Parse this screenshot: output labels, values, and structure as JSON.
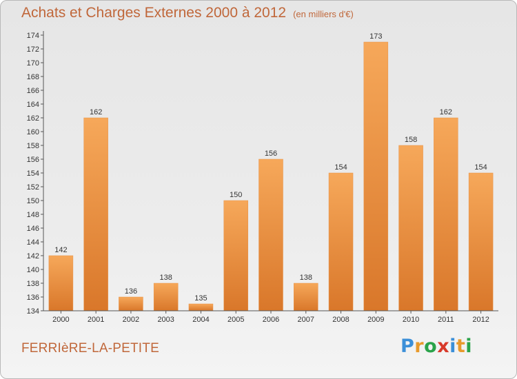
{
  "header": {
    "title": "Achats et Charges Externes 2000 à 2012",
    "subtitle": "(en milliers d'€)"
  },
  "footer": {
    "commune": "FERRIèRE-LA-PETITE",
    "logo_letters": [
      "P",
      "r",
      "o",
      "x",
      "i",
      "t",
      "i"
    ],
    "logo_colors": [
      "#3b8fd8",
      "#e89a2c",
      "#2aa34a",
      "#d83a2a",
      "#3b8fd8",
      "#e89a2c",
      "#2aa34a"
    ]
  },
  "colors": {
    "bar": "#e88a36",
    "bar_light": "#f6a85a",
    "title": "#c0673a",
    "axis": "#555555"
  },
  "chart_data": {
    "type": "bar",
    "title": "Achats et Charges Externes 2000 à 2012",
    "subtitle": "(en milliers d'€)",
    "categories": [
      "2000",
      "2001",
      "2002",
      "2003",
      "2004",
      "2005",
      "2006",
      "2007",
      "2008",
      "2009",
      "2010",
      "2011",
      "2012"
    ],
    "values": [
      142,
      162,
      136,
      138,
      135,
      150,
      156,
      138,
      154,
      173,
      158,
      162,
      154
    ],
    "ylim": [
      134,
      174
    ],
    "ytick_step": 2,
    "grid": false,
    "xlabel": "",
    "ylabel": ""
  }
}
